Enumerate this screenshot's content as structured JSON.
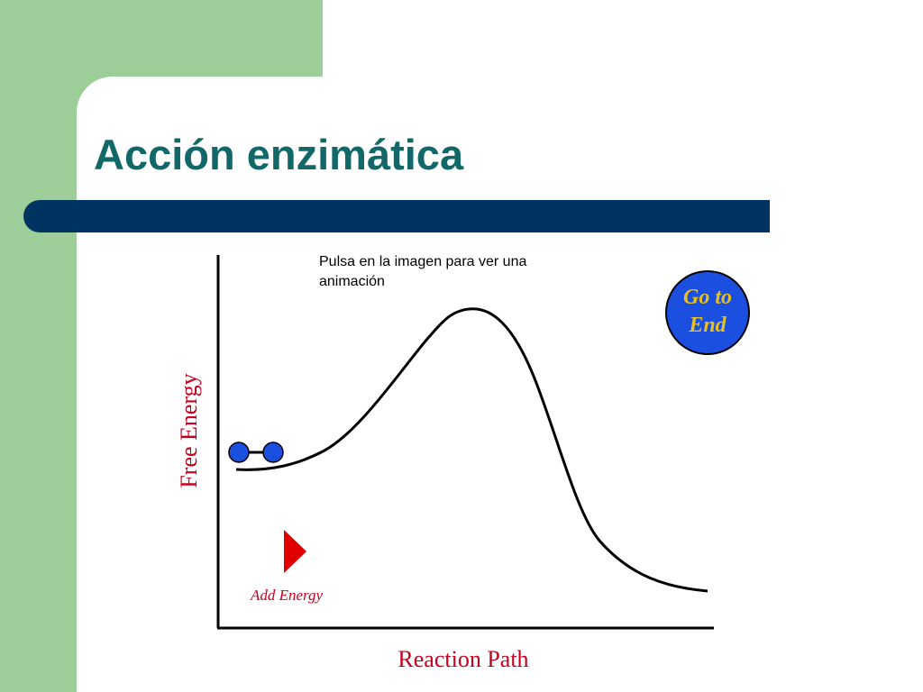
{
  "slide": {
    "title": "Acción enzimática",
    "hint_line1": "Pulsa en la imagen para ver una",
    "hint_line2": "animación"
  },
  "diagram": {
    "go_to_end_line1": "Go to",
    "go_to_end_line2": "End",
    "add_energy_label": "Add Energy",
    "x_axis_label": "Reaction Path",
    "y_axis_label": "Free Energy"
  },
  "colors": {
    "green_block": "#9dcd98",
    "title_text": "#126869",
    "title_bar": "#013361",
    "go_to_end_fill": "#1a4fe0",
    "go_to_end_text": "#e8c020",
    "molecule": "#1a4fe0",
    "axis_label": "#c8001e",
    "add_energy_arrow": "#e00000"
  },
  "icons": {
    "molecule": "molecule-icon",
    "arrow": "play-triangle-icon"
  }
}
